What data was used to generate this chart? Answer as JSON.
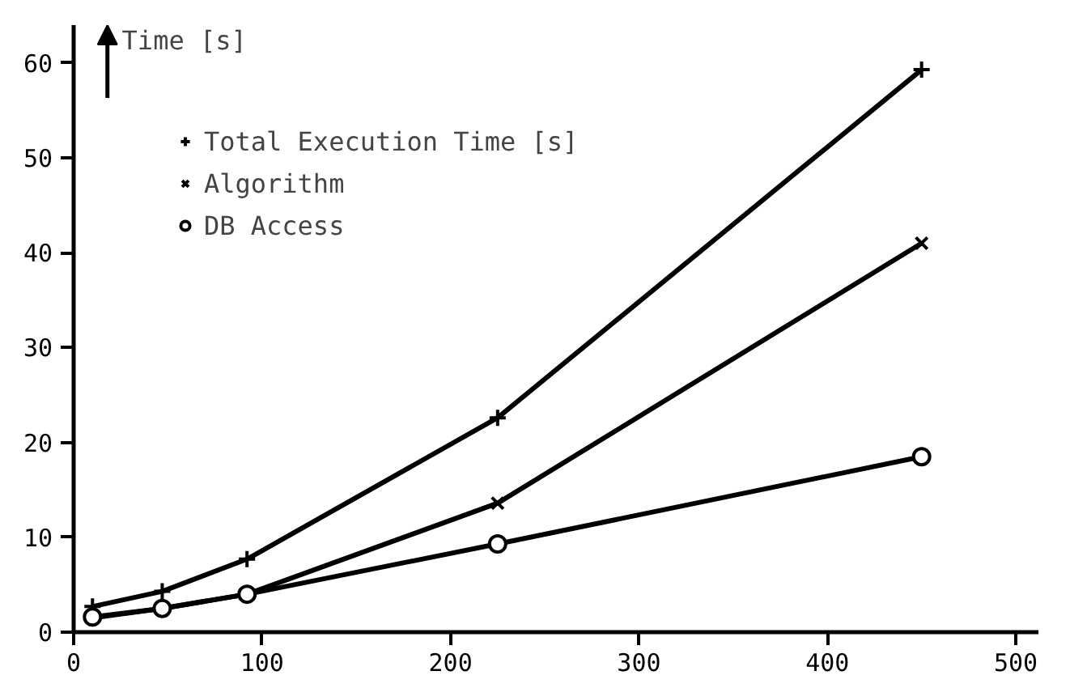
{
  "chart_data": {
    "type": "line",
    "ylabel": "Time [s]",
    "x": [
      10,
      47,
      92,
      225,
      450
    ],
    "series": [
      {
        "name": "Total Execution Time [s]",
        "color": "#000000",
        "marker": "plus",
        "values": [
          2.7,
          4.3,
          7.7,
          22.6,
          59.3
        ]
      },
      {
        "name": "Algorithm",
        "color": "#000000",
        "marker": "cross",
        "values": [
          1.5,
          2.5,
          4.0,
          13.6,
          41.0
        ]
      },
      {
        "name": "DB Access",
        "color": "#000000",
        "marker": "circle",
        "values": [
          1.6,
          2.5,
          4.0,
          9.3,
          18.5
        ]
      }
    ],
    "xlim": [
      0,
      512
    ],
    "ylim": [
      0,
      64
    ],
    "xticks": [
      0,
      100,
      200,
      300,
      400,
      500
    ],
    "yticks": [
      0,
      10,
      20,
      30,
      40,
      50,
      60
    ],
    "grid": false,
    "legend": "top left",
    "line_style": "solid"
  }
}
